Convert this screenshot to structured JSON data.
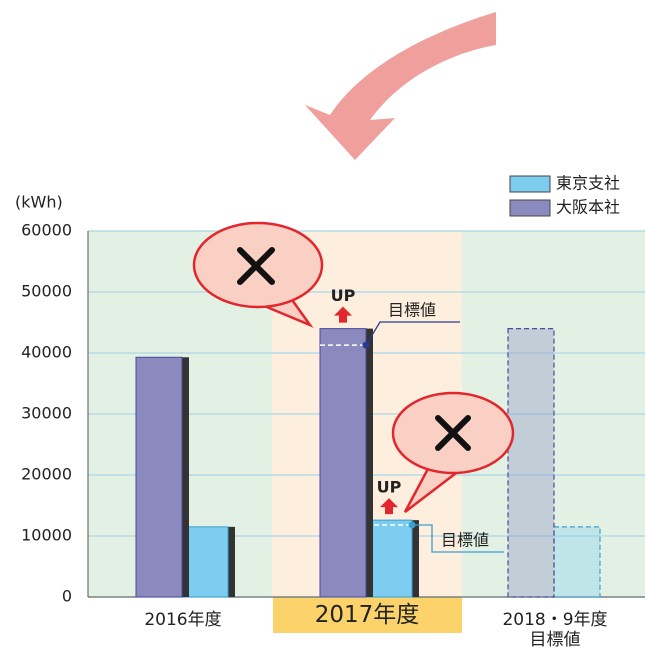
{
  "chart_data": {
    "type": "bar",
    "y_label": "(kWh)",
    "categories": [
      "2016年度",
      "2017年度",
      "2018・9年度\n目標値"
    ],
    "series": [
      {
        "name": "東京支社",
        "color": "#7dcdf0",
        "values": [
          11500,
          12600,
          11500
        ],
        "target": 11800
      },
      {
        "name": "大阪本社",
        "color": "#8a8abf",
        "values": [
          39300,
          44000,
          44000
        ],
        "target": 41300
      }
    ],
    "target_label": "目標値",
    "up_label": "UP",
    "ylim": [
      0,
      60000
    ],
    "yticks": [
      0,
      10000,
      20000,
      30000,
      40000,
      50000,
      60000
    ],
    "grid": true
  }
}
